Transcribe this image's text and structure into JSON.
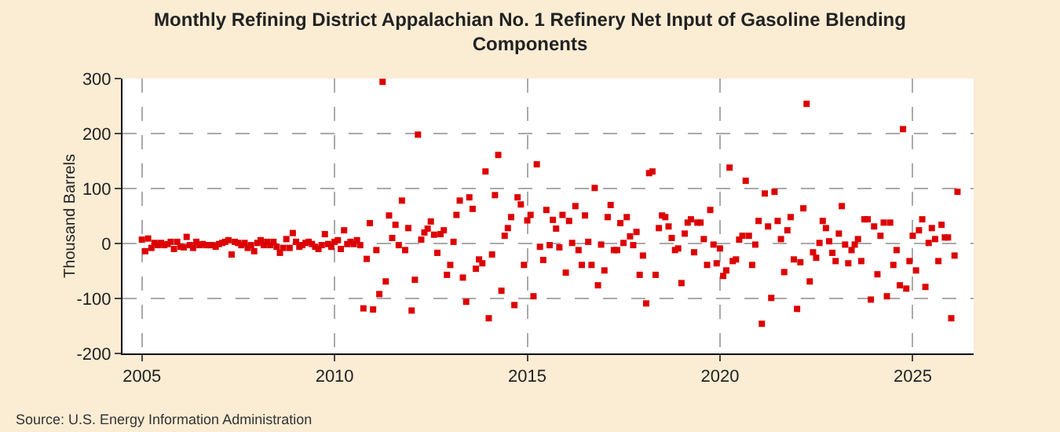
{
  "chart_data": {
    "type": "scatter",
    "title": "Monthly Refining District Appalachian No. 1 Refinery Net Input of Gasoline Blending Components",
    "ylabel": "Thousand Barrels",
    "annotations": [
      "Source: U.S. Energy Information Administration"
    ],
    "x": [
      "2005-01",
      "2005-02",
      "2005-03",
      "2005-04",
      "2005-05",
      "2005-06",
      "2005-07",
      "2005-08",
      "2005-09",
      "2005-10",
      "2005-11",
      "2005-12",
      "2006-01",
      "2006-02",
      "2006-03",
      "2006-04",
      "2006-05",
      "2006-06",
      "2006-07",
      "2006-08",
      "2006-09",
      "2006-10",
      "2006-11",
      "2006-12",
      "2007-01",
      "2007-02",
      "2007-03",
      "2007-04",
      "2007-05",
      "2007-06",
      "2007-07",
      "2007-08",
      "2007-09",
      "2007-10",
      "2007-11",
      "2007-12",
      "2008-01",
      "2008-02",
      "2008-03",
      "2008-04",
      "2008-05",
      "2008-06",
      "2008-07",
      "2008-08",
      "2008-09",
      "2008-10",
      "2008-11",
      "2008-12",
      "2009-01",
      "2009-02",
      "2009-03",
      "2009-04",
      "2009-05",
      "2009-06",
      "2009-07",
      "2009-08",
      "2009-09",
      "2009-10",
      "2009-11",
      "2009-12",
      "2010-01",
      "2010-02",
      "2010-03",
      "2010-04",
      "2010-05",
      "2010-06",
      "2010-07",
      "2010-08",
      "2010-09",
      "2010-10",
      "2010-11",
      "2010-12",
      "2011-01",
      "2011-02",
      "2011-03",
      "2011-04",
      "2011-05",
      "2011-06",
      "2011-07",
      "2011-08",
      "2011-09",
      "2011-10",
      "2011-11",
      "2011-12",
      "2012-01",
      "2012-02",
      "2012-03",
      "2012-04",
      "2012-05",
      "2012-06",
      "2012-07",
      "2012-08",
      "2012-09",
      "2012-10",
      "2012-11",
      "2012-12",
      "2013-01",
      "2013-02",
      "2013-03",
      "2013-04",
      "2013-05",
      "2013-06",
      "2013-07",
      "2013-08",
      "2013-09",
      "2013-10",
      "2013-11",
      "2013-12",
      "2014-01",
      "2014-02",
      "2014-03",
      "2014-04",
      "2014-05",
      "2014-06",
      "2014-07",
      "2014-08",
      "2014-09",
      "2014-10",
      "2014-11",
      "2014-12",
      "2015-01",
      "2015-02",
      "2015-03",
      "2015-04",
      "2015-05",
      "2015-06",
      "2015-07",
      "2015-08",
      "2015-09",
      "2015-10",
      "2015-11",
      "2015-12",
      "2016-01",
      "2016-02",
      "2016-03",
      "2016-04",
      "2016-05",
      "2016-06",
      "2016-07",
      "2016-08",
      "2016-09",
      "2016-10",
      "2016-11",
      "2016-12",
      "2017-01",
      "2017-02",
      "2017-03",
      "2017-04",
      "2017-05",
      "2017-06",
      "2017-07",
      "2017-08",
      "2017-09",
      "2017-10",
      "2017-11",
      "2017-12",
      "2018-01",
      "2018-02",
      "2018-03",
      "2018-04",
      "2018-05",
      "2018-06",
      "2018-07",
      "2018-08",
      "2018-09",
      "2018-10",
      "2018-11",
      "2018-12",
      "2019-01",
      "2019-02",
      "2019-03",
      "2019-04",
      "2019-05",
      "2019-06",
      "2019-07",
      "2019-08",
      "2019-09",
      "2019-10",
      "2019-11",
      "2019-12",
      "2020-01",
      "2020-02",
      "2020-03",
      "2020-04",
      "2020-05",
      "2020-06",
      "2020-07",
      "2020-08",
      "2020-09",
      "2020-10",
      "2020-11",
      "2020-12",
      "2021-01",
      "2021-02",
      "2021-03",
      "2021-04",
      "2021-05",
      "2021-06",
      "2021-07",
      "2021-08",
      "2021-09",
      "2021-10",
      "2021-11",
      "2021-12",
      "2022-01",
      "2022-02",
      "2022-03",
      "2022-04",
      "2022-05",
      "2022-06",
      "2022-07",
      "2022-08",
      "2022-09",
      "2022-10",
      "2022-11",
      "2022-12",
      "2023-01",
      "2023-02",
      "2023-03",
      "2023-04",
      "2023-05",
      "2023-06",
      "2023-07",
      "2023-08",
      "2023-09",
      "2023-10",
      "2023-11",
      "2023-12",
      "2024-01",
      "2024-02",
      "2024-03",
      "2024-04",
      "2024-05",
      "2024-06",
      "2024-07",
      "2024-08",
      "2024-09",
      "2024-10",
      "2024-11",
      "2024-12",
      "2025-01",
      "2025-02",
      "2025-03",
      "2025-04",
      "2025-05",
      "2025-06",
      "2025-07",
      "2025-08",
      "2025-09",
      "2025-10",
      "2025-11",
      "2025-12",
      "2026-01",
      "2026-02",
      "2026-03"
    ],
    "values": [
      7,
      -14,
      9,
      -8,
      1,
      -3,
      1,
      -3,
      -1,
      3,
      -10,
      3,
      -6,
      -7,
      12,
      -3,
      -8,
      3,
      -3,
      -1,
      -3,
      -3,
      -3,
      -6,
      -1,
      1,
      3,
      6,
      -20,
      3,
      1,
      -3,
      1,
      -8,
      -3,
      -14,
      1,
      6,
      -3,
      3,
      -3,
      3,
      -6,
      -17,
      -8,
      8,
      -8,
      19,
      3,
      -6,
      -3,
      1,
      3,
      -1,
      -6,
      -10,
      -3,
      17,
      -1,
      -6,
      3,
      6,
      -10,
      24,
      -1,
      3,
      -1,
      6,
      -3,
      -118,
      -28,
      37,
      -120,
      -12,
      -92,
      294,
      -69,
      51,
      10,
      34,
      -3,
      78,
      -12,
      28,
      -122,
      -66,
      198,
      7,
      20,
      27,
      40,
      16,
      -17,
      17,
      24,
      -57,
      -39,
      3,
      52,
      78,
      -62,
      -106,
      84,
      63,
      -46,
      -29,
      -36,
      131,
      -136,
      -20,
      88,
      161,
      -86,
      14,
      28,
      48,
      -112,
      84,
      71,
      -39,
      42,
      52,
      -96,
      144,
      -6,
      -30,
      61,
      -3,
      43,
      27,
      -7,
      52,
      -53,
      41,
      1,
      68,
      -12,
      -39,
      51,
      3,
      -39,
      101,
      -76,
      -2,
      -49,
      48,
      70,
      -12,
      -12,
      37,
      1,
      48,
      13,
      -3,
      21,
      -57,
      -22,
      -109,
      128,
      131,
      -57,
      28,
      51,
      48,
      31,
      10,
      -12,
      -9,
      -72,
      18,
      38,
      44,
      -16,
      38,
      38,
      8,
      -39,
      61,
      -2,
      -36,
      -9,
      -59,
      -49,
      138,
      -32,
      -29,
      7,
      14,
      114,
      14,
      -39,
      -2,
      41,
      -146,
      91,
      31,
      -99,
      94,
      41,
      8,
      -52,
      24,
      48,
      -29,
      -119,
      -34,
      64,
      254,
      -69,
      -16,
      -26,
      1,
      41,
      28,
      4,
      -17,
      -32,
      18,
      68,
      -2,
      -36,
      -12,
      -2,
      8,
      -32,
      44,
      44,
      -102,
      31,
      -56,
      14,
      38,
      -96,
      38,
      -39,
      -12,
      -76,
      208,
      -82,
      -32,
      14,
      -49,
      24,
      44,
      -79,
      1,
      28,
      8,
      -32,
      34,
      11,
      11,
      -136,
      -22,
      94
    ],
    "color": "#dd0000",
    "marker": "square",
    "grid": true,
    "xlim": [
      "2004-07",
      "2026-08"
    ],
    "xticks": [
      "2005",
      "2010",
      "2015",
      "2020",
      "2025"
    ],
    "ylim": [
      -200,
      300
    ],
    "yticks": [
      -200,
      -100,
      0,
      100,
      200,
      300
    ]
  }
}
